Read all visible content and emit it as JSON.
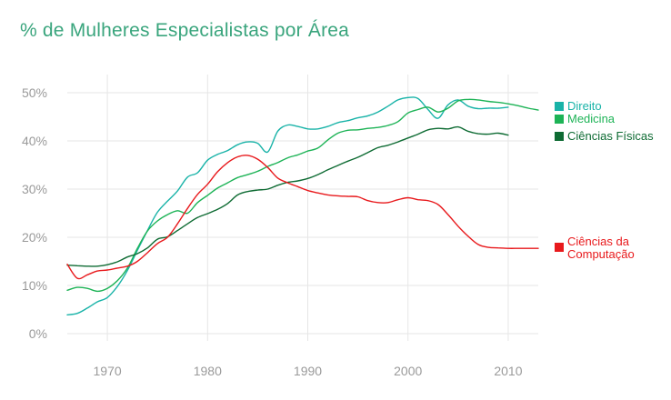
{
  "title": "% de Mulheres Especialistas por Área",
  "chart_data": {
    "type": "line",
    "title": "% de Mulheres Especialistas por Área",
    "xlabel": "",
    "ylabel": "",
    "xlim": [
      1966,
      2013
    ],
    "ylim": [
      0,
      50
    ],
    "x_ticks": [
      1970,
      1980,
      1990,
      2000,
      2010
    ],
    "y_ticks": [
      0,
      10,
      20,
      30,
      40,
      50
    ],
    "x_tick_labels": [
      "1970",
      "1980",
      "1990",
      "2000",
      "2010"
    ],
    "y_tick_labels": [
      "0%",
      "10%",
      "20%",
      "30%",
      "40%",
      "50%"
    ],
    "grid": true,
    "legend_position": "right",
    "series": [
      {
        "name": "Direito",
        "color": "#19b3a8",
        "x": [
          1966,
          1967,
          1968,
          1969,
          1970,
          1971,
          1972,
          1973,
          1974,
          1975,
          1976,
          1977,
          1978,
          1979,
          1980,
          1981,
          1982,
          1983,
          1984,
          1985,
          1986,
          1987,
          1988,
          1989,
          1990,
          1991,
          1992,
          1993,
          1994,
          1995,
          1996,
          1997,
          1998,
          1999,
          2000,
          2001,
          2002,
          2003,
          2004,
          2005,
          2006,
          2007,
          2008,
          2009,
          2010
        ],
        "y": [
          3.9,
          4.2,
          5.3,
          6.6,
          7.5,
          9.8,
          13.1,
          17.3,
          21.4,
          25.2,
          27.5,
          29.6,
          32.5,
          33.4,
          36.0,
          37.2,
          38.0,
          39.2,
          39.8,
          39.5,
          37.7,
          42.0,
          43.3,
          43.0,
          42.5,
          42.5,
          43.0,
          43.8,
          44.2,
          44.8,
          45.2,
          46.0,
          47.2,
          48.5,
          49.0,
          48.8,
          46.5,
          44.7,
          47.5,
          48.5,
          47.2,
          46.7,
          46.8,
          46.8,
          47.0
        ]
      },
      {
        "name": "Medicina",
        "color": "#1db356",
        "x": [
          1966,
          1967,
          1968,
          1969,
          1970,
          1971,
          1972,
          1973,
          1974,
          1975,
          1976,
          1977,
          1978,
          1979,
          1980,
          1981,
          1982,
          1983,
          1984,
          1985,
          1986,
          1987,
          1988,
          1989,
          1990,
          1991,
          1992,
          1993,
          1994,
          1995,
          1996,
          1997,
          1998,
          1999,
          2000,
          2001,
          2002,
          2003,
          2004,
          2005,
          2006,
          2007,
          2008,
          2009,
          2010,
          2011,
          2012,
          2013
        ],
        "y": [
          9.0,
          9.6,
          9.4,
          8.8,
          9.4,
          11.0,
          13.6,
          17.7,
          21.3,
          23.4,
          24.7,
          25.5,
          25.0,
          27.2,
          28.7,
          30.2,
          31.3,
          32.4,
          33.0,
          33.7,
          34.7,
          35.5,
          36.5,
          37.1,
          37.9,
          38.5,
          40.2,
          41.6,
          42.2,
          42.3,
          42.6,
          42.8,
          43.2,
          44.0,
          45.8,
          46.5,
          47.0,
          46.0,
          46.8,
          48.3,
          48.6,
          48.5,
          48.2,
          48.0,
          47.7,
          47.3,
          46.8,
          46.4
        ]
      },
      {
        "name": "Ciências Físicas",
        "color": "#0e6b33",
        "x": [
          1966,
          1967,
          1968,
          1969,
          1970,
          1971,
          1972,
          1973,
          1974,
          1975,
          1976,
          1977,
          1978,
          1979,
          1980,
          1981,
          1982,
          1983,
          1984,
          1985,
          1986,
          1987,
          1988,
          1989,
          1990,
          1991,
          1992,
          1993,
          1994,
          1995,
          1996,
          1997,
          1998,
          1999,
          2000,
          2001,
          2002,
          2003,
          2004,
          2005,
          2006,
          2007,
          2008,
          2009,
          2010
        ],
        "y": [
          14.2,
          14.1,
          14.0,
          14.0,
          14.3,
          14.9,
          15.9,
          16.6,
          17.8,
          19.6,
          20.1,
          21.4,
          22.8,
          24.1,
          24.9,
          25.8,
          27.0,
          28.8,
          29.5,
          29.8,
          30.0,
          30.8,
          31.4,
          31.7,
          32.2,
          33.0,
          34.0,
          34.9,
          35.8,
          36.6,
          37.6,
          38.6,
          39.1,
          39.8,
          40.6,
          41.4,
          42.3,
          42.6,
          42.5,
          42.9,
          42.0,
          41.5,
          41.4,
          41.6,
          41.2
        ]
      },
      {
        "name": "Ciências da Computação",
        "color": "#e8191c",
        "x": [
          1966,
          1967,
          1968,
          1969,
          1970,
          1971,
          1972,
          1973,
          1974,
          1975,
          1976,
          1977,
          1978,
          1979,
          1980,
          1981,
          1982,
          1983,
          1984,
          1985,
          1986,
          1987,
          1988,
          1989,
          1990,
          1991,
          1992,
          1993,
          1994,
          1995,
          1996,
          1997,
          1998,
          1999,
          2000,
          2001,
          2002,
          2003,
          2004,
          2005,
          2006,
          2007,
          2008,
          2009,
          2010,
          2011,
          2012,
          2013
        ],
        "y": [
          14.4,
          11.5,
          12.2,
          13.0,
          13.2,
          13.6,
          14.0,
          15.0,
          16.8,
          18.7,
          20.0,
          22.8,
          26.0,
          28.9,
          31.0,
          33.6,
          35.5,
          36.7,
          37.0,
          36.2,
          34.5,
          32.3,
          31.3,
          30.5,
          29.7,
          29.2,
          28.8,
          28.6,
          28.5,
          28.4,
          27.6,
          27.2,
          27.2,
          27.8,
          28.2,
          27.8,
          27.6,
          26.8,
          24.7,
          22.3,
          20.2,
          18.5,
          17.9,
          17.8,
          17.7,
          17.7,
          17.7,
          17.7
        ]
      }
    ]
  }
}
